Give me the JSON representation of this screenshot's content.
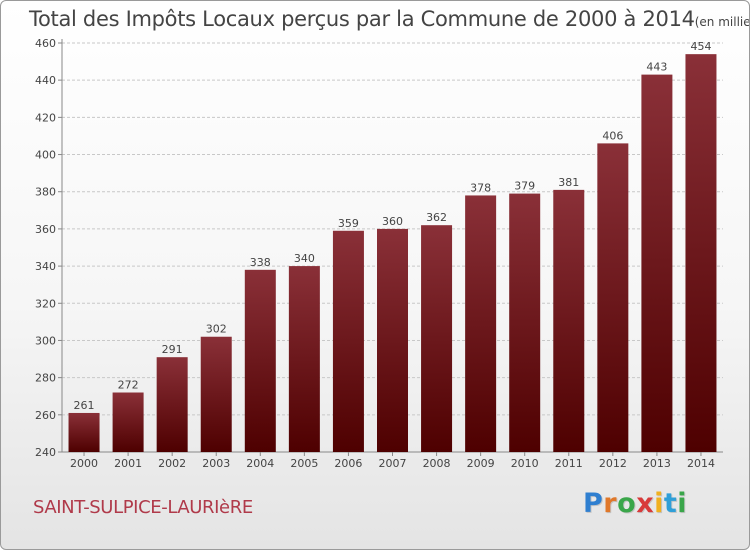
{
  "header": {
    "title": "Total des Impôts Locaux perçus par la Commune de 2000 à 2014",
    "unit_note": "(en milliers d'€)"
  },
  "footer": {
    "commune_name": "SAINT-SULPICE-LAURIèRE",
    "logo": [
      "P",
      "r",
      "o",
      "x",
      "i",
      "t",
      "i"
    ]
  },
  "colors": {
    "bar_top": "#8a3038",
    "bar_bottom": "#4e0000",
    "grid": "#c8c8c8",
    "text": "#444444",
    "commune": "#b03a4a"
  },
  "chart_data": {
    "type": "bar",
    "title": "Total des Impôts Locaux perçus par la Commune de 2000 à 2014",
    "xlabel": "",
    "ylabel": "",
    "categories": [
      "2000",
      "2001",
      "2002",
      "2003",
      "2004",
      "2005",
      "2006",
      "2007",
      "2008",
      "2009",
      "2010",
      "2011",
      "2012",
      "2013",
      "2014"
    ],
    "values": [
      261,
      272,
      291,
      302,
      338,
      340,
      359,
      360,
      362,
      378,
      379,
      381,
      406,
      443,
      454
    ],
    "ylim": [
      240,
      460
    ],
    "yticks": [
      240,
      260,
      280,
      300,
      320,
      340,
      360,
      380,
      400,
      420,
      440,
      460
    ],
    "grid": true,
    "data_labels": true
  }
}
